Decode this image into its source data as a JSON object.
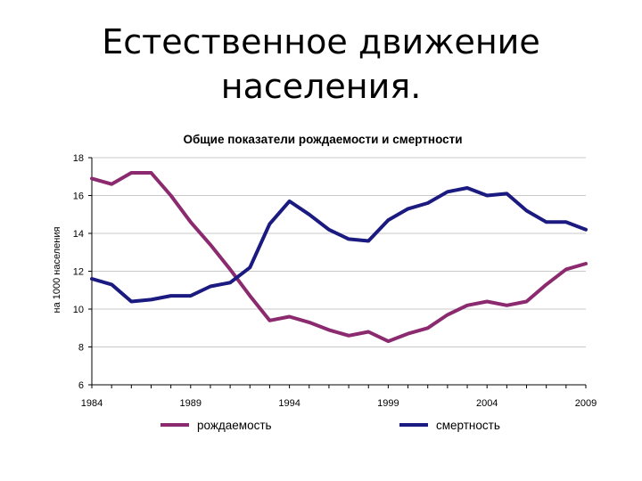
{
  "slide": {
    "title_line1": "Естественное движение",
    "title_line2": "населения."
  },
  "chart_data": {
    "type": "line",
    "title": "Общие показатели рождаемости и смертности",
    "ylabel": "на 1000 населения",
    "xlabel": "",
    "xlim": [
      1984,
      2009
    ],
    "ylim": [
      6,
      18
    ],
    "yticks": [
      6,
      8,
      10,
      12,
      14,
      16,
      18
    ],
    "xtick_labels": [
      {
        "x": 1984,
        "label": "1984"
      },
      {
        "x": 1989,
        "label": "1989"
      },
      {
        "x": 1994,
        "label": "1994"
      },
      {
        "x": 1999,
        "label": "1999"
      },
      {
        "x": 2004,
        "label": "2004"
      },
      {
        "x": 2009,
        "label": "2009"
      }
    ],
    "grid": "horizontal",
    "legend_position": "bottom",
    "x": [
      1984,
      1985,
      1986,
      1987,
      1988,
      1989,
      1990,
      1991,
      1992,
      1993,
      1994,
      1995,
      1996,
      1997,
      1998,
      1999,
      2000,
      2001,
      2002,
      2003,
      2004,
      2005,
      2006,
      2007,
      2008,
      2009
    ],
    "series": [
      {
        "name": "рождаемость",
        "color": "#8b2a6e",
        "values": [
          16.9,
          16.6,
          17.2,
          17.2,
          16.0,
          14.6,
          13.4,
          12.1,
          10.7,
          9.4,
          9.6,
          9.3,
          8.9,
          8.6,
          8.8,
          8.3,
          8.7,
          9.0,
          9.7,
          10.2,
          10.4,
          10.2,
          10.4,
          11.3,
          12.1,
          12.4
        ]
      },
      {
        "name": "смертность",
        "color": "#1a1a80",
        "values": [
          11.6,
          11.3,
          10.4,
          10.5,
          10.7,
          10.7,
          11.2,
          11.4,
          12.2,
          14.5,
          15.7,
          15.0,
          14.2,
          13.7,
          13.6,
          14.7,
          15.3,
          15.6,
          16.2,
          16.4,
          16.0,
          16.1,
          15.2,
          14.6,
          14.6,
          14.2
        ]
      }
    ]
  }
}
